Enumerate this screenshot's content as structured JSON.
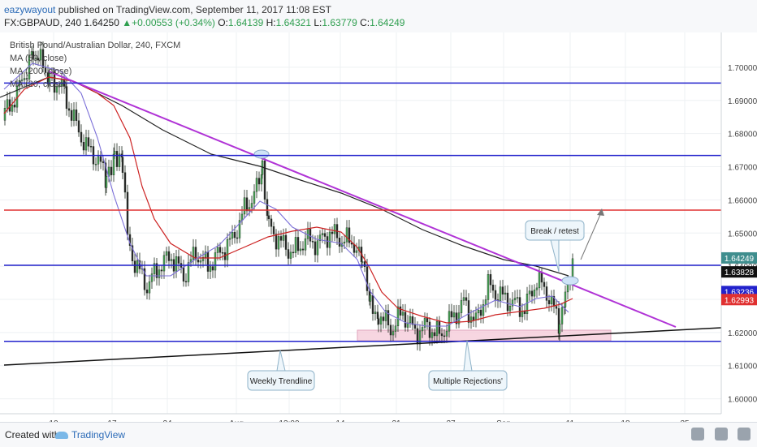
{
  "header": {
    "user": "eazywayout",
    "published": " published on TradingView.com, September 11, 2017 11:08 EST",
    "symbol": "FX:GBPAUD, 240",
    "price": "1.64250",
    "change": "+0.00553 (+0.34%)",
    "ohlc_o": "1.64139",
    "ohlc_h": "1.64321",
    "ohlc_l": "1.63779",
    "ohlc_c": "1.64249"
  },
  "legend": {
    "title": "British Pound/Australian Dollar, 240, FXCM",
    "ma1": "MA (50, close)",
    "ma2": "MA (200, close)",
    "ma3": "MA (20, close)"
  },
  "footer": {
    "created": "Created with",
    "brand": "TradingView"
  },
  "chart_data": {
    "type": "candlestick",
    "y_axis": {
      "range": [
        1.5955,
        1.7105
      ],
      "ticks": [
        "1.70000",
        "1.69000",
        "1.68000",
        "1.67000",
        "1.66000",
        "1.65000",
        "1.64000",
        "1.63000",
        "1.62000",
        "1.61000",
        "1.60000"
      ]
    },
    "x_axis": {
      "ticks": [
        "10",
        "17",
        "24",
        "Aug",
        "13:00",
        "14",
        "21",
        "27",
        "Sep",
        "11",
        "18",
        "25"
      ]
    },
    "horizontal_levels": [
      {
        "label": "1.69525",
        "color": "#2222cc"
      },
      {
        "label": "1.67341",
        "color": "#2222cc"
      },
      {
        "label": "1.65690",
        "color": "#e03030"
      },
      {
        "label": "1.64027",
        "color": "#2222cc"
      },
      {
        "label": "1.61735",
        "color": "#2222cc"
      }
    ],
    "price_labels": [
      {
        "label": "1.64249",
        "color": "#3f8e8e"
      },
      {
        "label": "1.63828",
        "color": "#111111"
      },
      {
        "label": "1.63236",
        "color": "#2222cc"
      },
      {
        "label": "1.62993",
        "color": "#e03030"
      }
    ],
    "annotations": [
      {
        "label": "Weekly Trendline"
      },
      {
        "label": "Multiple Rejections'"
      },
      {
        "label": "Break / retest"
      }
    ]
  }
}
